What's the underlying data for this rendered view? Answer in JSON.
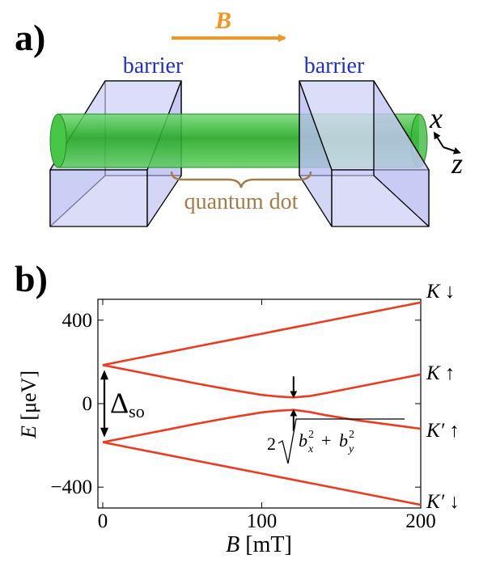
{
  "panel_a": {
    "label": "a)",
    "field_label": "B",
    "barrier_left": "barrier",
    "barrier_right": "barrier",
    "quantum_dot": "quantum dot",
    "axis_x": "x",
    "axis_z": "z",
    "colors": {
      "field_arrow": "#f7941d",
      "barrier_text": "#1f2fd0",
      "dot_text": "#a47c45",
      "nanotube": "#2db52d",
      "barrier_fill": "#c9cdf5"
    }
  },
  "panel_b": {
    "label": "b)",
    "y_label_var": "E",
    "y_label_unit": "[μeV]",
    "x_label_var": "B",
    "x_label_unit": "[mT]",
    "delta_label": "Δ",
    "delta_sub": "so",
    "gap_label": "2√(b_x² + b_y²)"
  },
  "chart_data": {
    "type": "line",
    "xlim": [
      0,
      200
    ],
    "ylim": [
      -500,
      500
    ],
    "xticks": [
      "0",
      "100",
      "200"
    ],
    "yticks": [
      "400",
      "0",
      "−400"
    ],
    "xtick_values": [
      0,
      100,
      200
    ],
    "ytick_values": [
      400,
      0,
      -400
    ],
    "grid": false,
    "color": "#ee3a1e",
    "x": [
      0,
      20,
      40,
      60,
      80,
      100,
      110,
      120,
      130,
      140,
      160,
      180,
      200
    ],
    "series": [
      {
        "name": "K ↓",
        "values": [
          185,
          215,
          245,
          275,
          305,
          335,
          350,
          365,
          380,
          395,
          425,
          455,
          485
        ]
      },
      {
        "name": "K ↑",
        "values": [
          185,
          155,
          125,
          95,
          67,
          42,
          34,
          30,
          36,
          50,
          80,
          110,
          140
        ]
      },
      {
        "name": "K′ ↑",
        "values": [
          -185,
          -155,
          -125,
          -95,
          -67,
          -42,
          -34,
          -30,
          -40,
          -55,
          -80,
          -100,
          -120
        ]
      },
      {
        "name": "K′ ↓",
        "values": [
          -185,
          -215,
          -245,
          -275,
          -305,
          -335,
          -350,
          -365,
          -380,
          -395,
          -425,
          -455,
          -485
        ]
      }
    ]
  }
}
